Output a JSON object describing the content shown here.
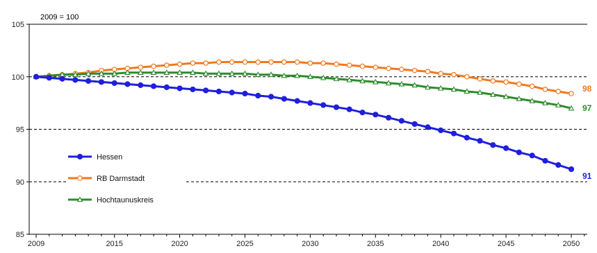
{
  "chart_data": {
    "type": "line",
    "annotation": "2009 = 100",
    "xlabel": "",
    "ylabel": "",
    "xlim": [
      2009,
      2051
    ],
    "ylim": [
      85,
      105
    ],
    "x_ticks": [
      2009,
      2015,
      2020,
      2025,
      2030,
      2035,
      2040,
      2045,
      2050
    ],
    "y_ticks": [
      85,
      90,
      95,
      100,
      105
    ],
    "grid": "dashed horizontal at 90, 95, 100",
    "legend_position": "bottom-left",
    "x": [
      2009,
      2010,
      2011,
      2012,
      2013,
      2014,
      2015,
      2016,
      2017,
      2018,
      2019,
      2020,
      2021,
      2022,
      2023,
      2024,
      2025,
      2026,
      2027,
      2028,
      2029,
      2030,
      2031,
      2032,
      2033,
      2034,
      2035,
      2036,
      2037,
      2038,
      2039,
      2040,
      2041,
      2042,
      2043,
      2044,
      2045,
      2046,
      2047,
      2048,
      2049,
      2050
    ],
    "series": [
      {
        "name": "Hessen",
        "color": "#1f1fdd",
        "marker": "filled-circle",
        "end_label": "91",
        "values": [
          100.0,
          99.9,
          99.8,
          99.7,
          99.6,
          99.5,
          99.4,
          99.3,
          99.2,
          99.1,
          99.0,
          98.9,
          98.8,
          98.7,
          98.6,
          98.5,
          98.4,
          98.2,
          98.1,
          97.9,
          97.7,
          97.5,
          97.3,
          97.1,
          96.9,
          96.6,
          96.4,
          96.1,
          95.8,
          95.5,
          95.2,
          94.9,
          94.6,
          94.2,
          93.9,
          93.5,
          93.2,
          92.8,
          92.5,
          92.0,
          91.6,
          91.2
        ]
      },
      {
        "name": "RB Darmstadt",
        "color": "#f07820",
        "marker": "open-circle",
        "end_label": "98",
        "values": [
          100.0,
          100.1,
          100.2,
          100.3,
          100.4,
          100.6,
          100.7,
          100.8,
          100.9,
          101.0,
          101.1,
          101.2,
          101.3,
          101.3,
          101.4,
          101.4,
          101.4,
          101.4,
          101.4,
          101.4,
          101.4,
          101.3,
          101.3,
          101.2,
          101.1,
          101.0,
          100.9,
          100.8,
          100.7,
          100.6,
          100.5,
          100.3,
          100.2,
          100.0,
          99.8,
          99.6,
          99.5,
          99.3,
          99.1,
          98.8,
          98.6,
          98.4
        ]
      },
      {
        "name": "Hochtaunuskreis",
        "color": "#2e8b2e",
        "marker": "open-triangle",
        "end_label": "97",
        "values": [
          100.0,
          100.1,
          100.2,
          100.2,
          100.3,
          100.3,
          100.3,
          100.4,
          100.4,
          100.4,
          100.4,
          100.4,
          100.4,
          100.3,
          100.3,
          100.3,
          100.3,
          100.2,
          100.2,
          100.1,
          100.1,
          100.0,
          99.9,
          99.8,
          99.7,
          99.6,
          99.5,
          99.4,
          99.3,
          99.2,
          99.0,
          98.9,
          98.8,
          98.6,
          98.5,
          98.3,
          98.1,
          97.9,
          97.7,
          97.5,
          97.3,
          97.0
        ]
      }
    ]
  }
}
